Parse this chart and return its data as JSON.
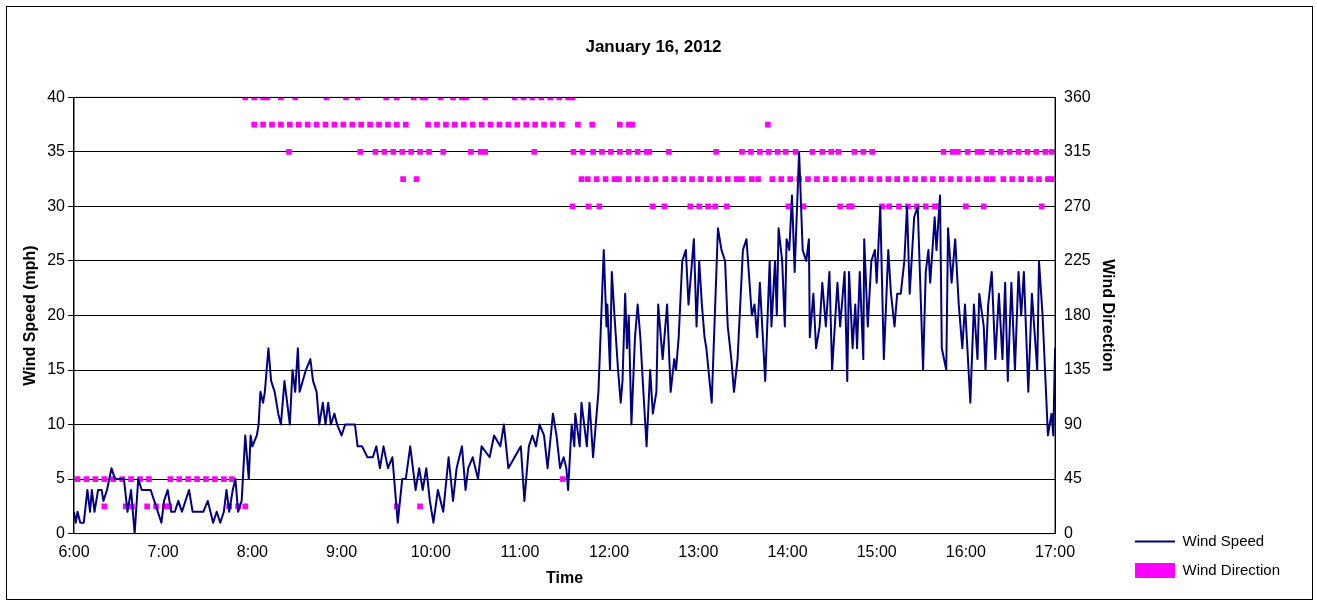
{
  "chart_data": {
    "type": "line",
    "title": "January 16, 2012",
    "xlabel": "Time",
    "ylabel": "Wind Speed (mph)",
    "y2label": "Wind Direction",
    "xlim": [
      6,
      17
    ],
    "xticks": [
      {
        "value": 6,
        "label": "6:00"
      },
      {
        "value": 7,
        "label": "7:00"
      },
      {
        "value": 8,
        "label": "8:00"
      },
      {
        "value": 9,
        "label": "9:00"
      },
      {
        "value": 10,
        "label": "10:00"
      },
      {
        "value": 11,
        "label": "11:00"
      },
      {
        "value": 12,
        "label": "12:00"
      },
      {
        "value": 13,
        "label": "13:00"
      },
      {
        "value": 14,
        "label": "14:00"
      },
      {
        "value": 15,
        "label": "15:00"
      },
      {
        "value": 16,
        "label": "16:00"
      },
      {
        "value": 17,
        "label": "17:00"
      }
    ],
    "ylim": [
      0,
      40
    ],
    "yticks": [
      0,
      5,
      10,
      15,
      20,
      25,
      30,
      35,
      40
    ],
    "y2lim": [
      0,
      360
    ],
    "y2ticks": [
      0,
      45,
      90,
      135,
      180,
      225,
      270,
      315,
      360
    ],
    "grid": "y",
    "legend": "bottom right",
    "series": [
      {
        "name": "Wind Speed",
        "type": "line",
        "color": "#000080",
        "marker": "none",
        "line_style": "solid",
        "x": [
          6.0,
          6.02,
          6.04,
          6.07,
          6.11,
          6.15,
          6.18,
          6.2,
          6.23,
          6.27,
          6.31,
          6.33,
          6.37,
          6.42,
          6.46,
          6.5,
          6.56,
          6.6,
          6.64,
          6.68,
          6.72,
          6.76,
          6.86,
          6.9,
          6.94,
          6.98,
          7.01,
          7.05,
          7.09,
          7.13,
          7.17,
          7.21,
          7.29,
          7.33,
          7.39,
          7.45,
          7.5,
          7.56,
          7.6,
          7.64,
          7.68,
          7.71,
          7.74,
          7.78,
          7.81,
          7.84,
          7.88,
          7.92,
          7.96,
          7.98,
          8.0,
          8.05,
          8.07,
          8.09,
          8.12,
          8.14,
          8.18,
          8.21,
          8.25,
          8.29,
          8.32,
          8.36,
          8.39,
          8.42,
          8.45,
          8.48,
          8.51,
          8.53,
          8.6,
          8.65,
          8.68,
          8.72,
          8.75,
          8.79,
          8.82,
          8.85,
          8.88,
          8.92,
          8.95,
          9.0,
          9.04,
          9.15,
          9.18,
          9.23,
          9.29,
          9.35,
          9.39,
          9.43,
          9.47,
          9.52,
          9.57,
          9.63,
          9.68,
          9.72,
          9.77,
          9.8,
          9.83,
          9.87,
          9.91,
          9.95,
          9.99,
          10.03,
          10.08,
          10.14,
          10.2,
          10.25,
          10.29,
          10.35,
          10.39,
          10.42,
          10.47,
          10.53,
          10.57,
          10.66,
          10.71,
          10.78,
          10.82,
          10.87,
          10.94,
          11.01,
          11.05,
          11.1,
          11.14,
          11.18,
          11.22,
          11.27,
          11.31,
          11.37,
          11.41,
          11.45,
          11.49,
          11.52,
          11.54,
          11.58,
          11.61,
          11.62,
          11.67,
          11.69,
          11.75,
          11.78,
          11.82,
          11.88,
          11.94,
          11.97,
          11.98,
          12.01,
          12.03,
          12.06,
          12.1,
          12.13,
          12.15,
          12.18,
          12.2,
          12.22,
          12.25,
          12.29,
          12.32,
          12.35,
          12.37,
          12.42,
          12.46,
          12.49,
          12.53,
          12.55,
          12.58,
          12.6,
          12.65,
          12.69,
          12.73,
          12.75,
          12.78,
          12.82,
          12.86,
          12.89,
          12.95,
          12.98,
          13.01,
          13.04,
          13.07,
          13.09,
          13.15,
          13.22,
          13.26,
          13.3,
          13.33,
          13.37,
          13.4,
          13.44,
          13.5,
          13.54,
          13.6,
          13.63,
          13.66,
          13.69,
          13.75,
          13.8,
          13.82,
          13.86,
          13.88,
          13.9,
          13.94,
          13.97,
          13.99,
          14.02,
          14.05,
          14.08,
          14.13,
          14.17,
          14.21,
          14.24,
          14.25,
          14.29,
          14.32,
          14.36,
          14.39,
          14.43,
          14.47,
          14.5,
          14.53,
          14.56,
          14.59,
          14.64,
          14.67,
          14.69,
          14.73,
          14.76,
          14.78,
          14.81,
          14.85,
          14.86,
          14.9,
          14.94,
          14.98,
          15.0,
          15.04,
          15.08,
          15.13,
          15.16,
          15.2,
          15.23,
          15.27,
          15.31,
          15.34,
          15.37,
          15.42,
          15.46,
          15.52,
          15.55,
          15.58,
          15.6,
          15.65,
          15.67,
          15.71,
          15.73,
          15.78,
          15.8,
          15.84,
          15.88,
          15.92,
          15.96,
          15.99,
          16.05,
          16.09,
          16.13,
          16.15,
          16.2,
          16.22,
          16.25,
          16.29,
          16.33,
          16.37,
          16.41,
          16.44,
          16.47,
          16.51,
          16.55,
          16.59,
          16.62,
          16.65,
          16.7,
          16.74,
          16.8,
          16.82,
          16.86,
          16.92,
          16.96,
          16.98,
          17.0
        ],
        "values": [
          2,
          1,
          2,
          1,
          1,
          4,
          2,
          4,
          2,
          4,
          4,
          3,
          4,
          6,
          5,
          5,
          5,
          2,
          4,
          0,
          5,
          4,
          4,
          3,
          2,
          1,
          3,
          4,
          2,
          2,
          3,
          2,
          4,
          2,
          2,
          2,
          3,
          1,
          2,
          1,
          2,
          4,
          2,
          4,
          5,
          2,
          3,
          9,
          5,
          9,
          8,
          9,
          10,
          13,
          12,
          13,
          17,
          14,
          13,
          11,
          10,
          14,
          12,
          10,
          15,
          13,
          17,
          13,
          15,
          16,
          14,
          13,
          10,
          12,
          10,
          12,
          10,
          11,
          10,
          9,
          10,
          10,
          8,
          8,
          7,
          7,
          8,
          6,
          8,
          6,
          7,
          1,
          5,
          5,
          8,
          6,
          4,
          6,
          4,
          6,
          3,
          1,
          4,
          2,
          7,
          3,
          6,
          8,
          4,
          6,
          7,
          5,
          8,
          7,
          9,
          8,
          10,
          6,
          7,
          8,
          3,
          8,
          9,
          8,
          10,
          9,
          6,
          11,
          9,
          6,
          7,
          6,
          4,
          10,
          8,
          11,
          8,
          12,
          8,
          12,
          7,
          13,
          26,
          19,
          21,
          15,
          24,
          20,
          15,
          12,
          14,
          22,
          17,
          20,
          10,
          18,
          21,
          18,
          15,
          8,
          15,
          11,
          13,
          21,
          18,
          16,
          21,
          13,
          16,
          15,
          18,
          25,
          26,
          21,
          27,
          19,
          25,
          21,
          18,
          17,
          12,
          28,
          26,
          25,
          19,
          16,
          13,
          16,
          26,
          27,
          20,
          21,
          18,
          23,
          14,
          25,
          19,
          25,
          20,
          28,
          25,
          19,
          27,
          26,
          31,
          24,
          35,
          26,
          25,
          27,
          18,
          22,
          17,
          19,
          23,
          19,
          24,
          15,
          19,
          23,
          19,
          24,
          14,
          24,
          17,
          21,
          17,
          24,
          16,
          27,
          19,
          25,
          26,
          23,
          30,
          16,
          26,
          22,
          19,
          22,
          22,
          25,
          30,
          22,
          29,
          30,
          15,
          24,
          26,
          23,
          29,
          26,
          31,
          17,
          15,
          28,
          23,
          27,
          21,
          17,
          21,
          12,
          21,
          16,
          22,
          19,
          15,
          21,
          24,
          16,
          22,
          16,
          23,
          14,
          23,
          15,
          24,
          20,
          24,
          13,
          22,
          15,
          25,
          20,
          9,
          11,
          9,
          17
        ]
      },
      {
        "name": "Wind Direction",
        "type": "scatter",
        "axis": "y2",
        "color": "#ff00ff",
        "marker": "square",
        "x": [
          6.04,
          6.14,
          6.24,
          6.34,
          6.44,
          6.54,
          6.64,
          6.74,
          6.84,
          7.08,
          7.18,
          7.28,
          7.38,
          7.48,
          7.58,
          7.68,
          7.77,
          11.48,
          6.34,
          6.58,
          6.65,
          6.82,
          6.92,
          7.02,
          7.07,
          7.74,
          7.84,
          7.92,
          9.62,
          9.88,
          7.92,
          8.02,
          8.12,
          8.17,
          8.32,
          8.48,
          8.83,
          9.05,
          9.18,
          9.5,
          9.62,
          9.81,
          9.91,
          9.94,
          10.11,
          10.25,
          10.35,
          10.4,
          10.61,
          10.94,
          11.04,
          11.14,
          11.24,
          11.34,
          11.44,
          11.54,
          11.59,
          8.02,
          8.12,
          8.22,
          8.32,
          8.42,
          8.52,
          8.62,
          8.72,
          8.82,
          8.92,
          9.02,
          9.12,
          9.22,
          9.32,
          9.42,
          9.52,
          9.62,
          9.72,
          9.97,
          10.07,
          10.17,
          10.27,
          10.37,
          10.47,
          10.57,
          10.67,
          10.77,
          10.87,
          10.97,
          11.07,
          11.17,
          11.27,
          11.37,
          11.47,
          11.65,
          11.81,
          12.12,
          12.22,
          12.26,
          13.78,
          8.41,
          9.21,
          9.38,
          9.48,
          9.58,
          9.68,
          9.78,
          9.88,
          9.98,
          10.14,
          10.45,
          10.56,
          10.61,
          11.16,
          11.6,
          11.7,
          11.82,
          11.92,
          12.02,
          12.12,
          12.22,
          12.32,
          12.42,
          12.45,
          12.67,
          13.2,
          13.49,
          13.59,
          13.69,
          13.79,
          13.89,
          13.98,
          14.09,
          14.28,
          14.39,
          14.49,
          14.57,
          14.75,
          14.85,
          14.95,
          15.75,
          15.85,
          15.91,
          16.02,
          16.13,
          16.18,
          16.29,
          16.39,
          16.49,
          16.59,
          16.69,
          16.79,
          16.89,
          16.96,
          9.69,
          9.84,
          11.69,
          11.76,
          11.86,
          11.96,
          12.06,
          12.11,
          12.22,
          12.32,
          12.42,
          12.52,
          12.63,
          12.73,
          12.83,
          12.93,
          13.03,
          13.13,
          13.23,
          13.33,
          13.43,
          13.49,
          13.6,
          13.67,
          13.83,
          13.93,
          14.03,
          14.13,
          14.23,
          14.33,
          14.43,
          14.53,
          14.63,
          14.73,
          14.83,
          14.93,
          15.03,
          15.13,
          15.23,
          15.33,
          15.43,
          15.53,
          15.63,
          15.73,
          15.83,
          15.93,
          16.03,
          16.13,
          16.23,
          16.3,
          16.42,
          16.52,
          16.62,
          16.72,
          16.82,
          16.92,
          16.96,
          11.59,
          11.77,
          11.89,
          12.49,
          12.62,
          12.91,
          13.01,
          13.11,
          13.19,
          13.32,
          14.01,
          14.18,
          14.59,
          14.69,
          14.72,
          15.06,
          15.14,
          15.25,
          15.35,
          15.45,
          15.55,
          15.65,
          15.69,
          16.0,
          16.2,
          16.85
        ],
        "values": [
          45,
          45,
          45,
          45,
          45,
          45,
          45,
          45,
          45,
          45,
          45,
          45,
          45,
          45,
          45,
          45,
          45,
          45,
          22.5,
          22.5,
          22.5,
          22.5,
          22.5,
          22.5,
          22.5,
          22.5,
          22.5,
          22.5,
          22.5,
          22.5,
          360,
          360,
          360,
          360,
          360,
          360,
          360,
          360,
          360,
          360,
          360,
          360,
          360,
          360,
          360,
          360,
          360,
          360,
          360,
          360,
          360,
          360,
          360,
          360,
          360,
          360,
          360,
          337.5,
          337.5,
          337.5,
          337.5,
          337.5,
          337.5,
          337.5,
          337.5,
          337.5,
          337.5,
          337.5,
          337.5,
          337.5,
          337.5,
          337.5,
          337.5,
          337.5,
          337.5,
          337.5,
          337.5,
          337.5,
          337.5,
          337.5,
          337.5,
          337.5,
          337.5,
          337.5,
          337.5,
          337.5,
          337.5,
          337.5,
          337.5,
          337.5,
          337.5,
          337.5,
          337.5,
          337.5,
          337.5,
          337.5,
          337.5,
          315,
          315,
          315,
          315,
          315,
          315,
          315,
          315,
          315,
          315,
          315,
          315,
          315,
          315,
          315,
          315,
          315,
          315,
          315,
          315,
          315,
          315,
          315,
          315,
          315,
          315,
          315,
          315,
          315,
          315,
          315,
          315,
          315,
          315,
          315,
          315,
          315,
          315,
          315,
          315,
          315,
          315,
          315,
          315,
          315,
          315,
          315,
          315,
          315,
          315,
          315,
          315,
          315,
          315,
          292.5,
          292.5,
          292.5,
          292.5,
          292.5,
          292.5,
          292.5,
          292.5,
          292.5,
          292.5,
          292.5,
          292.5,
          292.5,
          292.5,
          292.5,
          292.5,
          292.5,
          292.5,
          292.5,
          292.5,
          292.5,
          292.5,
          292.5,
          292.5,
          292.5,
          292.5,
          292.5,
          292.5,
          292.5,
          292.5,
          292.5,
          292.5,
          292.5,
          292.5,
          292.5,
          292.5,
          292.5,
          292.5,
          292.5,
          292.5,
          292.5,
          292.5,
          292.5,
          292.5,
          292.5,
          292.5,
          292.5,
          292.5,
          292.5,
          292.5,
          292.5,
          292.5,
          292.5,
          292.5,
          292.5,
          292.5,
          292.5,
          270,
          270,
          270,
          270,
          270,
          270,
          270,
          270,
          270,
          270,
          270,
          270,
          270,
          270,
          270,
          270,
          270,
          270,
          270,
          270,
          270,
          270,
          270,
          270,
          270,
          270
        ]
      }
    ]
  }
}
